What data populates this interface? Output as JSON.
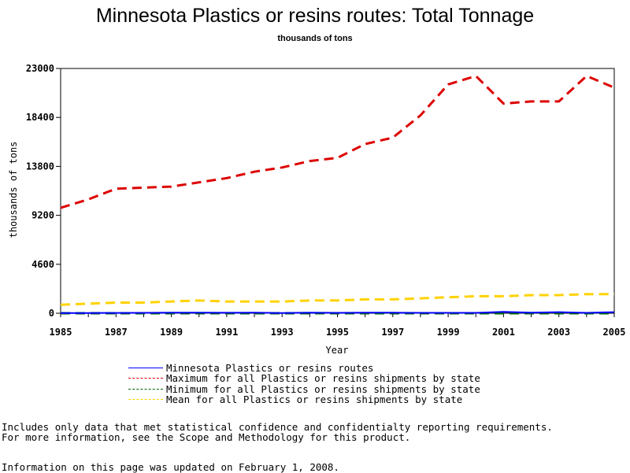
{
  "chart_data": {
    "type": "line",
    "title": "Minnesota Plastics or resins routes: Total Tonnage",
    "subtitle": "thousands of tons",
    "xlabel": "Year",
    "ylabel": "thousands of tons",
    "xlim": [
      1985,
      2005
    ],
    "ylim": [
      0,
      23000
    ],
    "x_ticks": [
      "1985",
      "1987",
      "1989",
      "1991",
      "1993",
      "1995",
      "1997",
      "1999",
      "2001",
      "2003",
      "2005"
    ],
    "y_ticks": [
      "0",
      "4600",
      "9200",
      "13800",
      "18400",
      "23000"
    ],
    "x": [
      1985,
      1986,
      1987,
      1988,
      1989,
      1990,
      1991,
      1992,
      1993,
      1994,
      1995,
      1996,
      1997,
      1998,
      1999,
      2000,
      2001,
      2002,
      2003,
      2004,
      2005
    ],
    "series": [
      {
        "name": "Minnesota Plastics or resins routes",
        "color": "#0000ff",
        "dash": "solid",
        "values": [
          20,
          25,
          30,
          40,
          60,
          50,
          45,
          50,
          20,
          60,
          40,
          50,
          50,
          40,
          40,
          40,
          130,
          60,
          100,
          40,
          100
        ]
      },
      {
        "name": "Maximum for all Plastics or resins shipments by state",
        "color": "#dd0000",
        "dash": "dashed",
        "values": [
          9900,
          10700,
          11700,
          11800,
          11900,
          12300,
          12700,
          13300,
          13700,
          14300,
          14600,
          15900,
          16500,
          18600,
          21500,
          22300,
          19700,
          19900,
          19900,
          22300,
          21200
        ]
      },
      {
        "name": "Minimum for all Plastics or resins shipments by state",
        "color": "#006600",
        "dash": "dashed",
        "values": [
          0,
          0,
          0,
          0,
          0,
          0,
          0,
          0,
          0,
          0,
          0,
          0,
          0,
          0,
          0,
          0,
          0,
          0,
          0,
          0,
          0
        ]
      },
      {
        "name": "Mean for all Plastics or resins shipments by state",
        "color": "#ffd200",
        "dash": "dashed",
        "values": [
          800,
          900,
          1000,
          1000,
          1100,
          1200,
          1100,
          1100,
          1100,
          1200,
          1200,
          1300,
          1300,
          1400,
          1500,
          1600,
          1600,
          1700,
          1700,
          1800,
          1800
        ]
      }
    ],
    "grid": false,
    "legend_position": "bottom"
  },
  "footnote": {
    "line1": "Includes only data that met statistical confidence and confidentialty reporting requirements.",
    "line2": "For more information, see the Scope and Methodology for this product.",
    "updated": "Information on this page was updated on February 1, 2008."
  }
}
